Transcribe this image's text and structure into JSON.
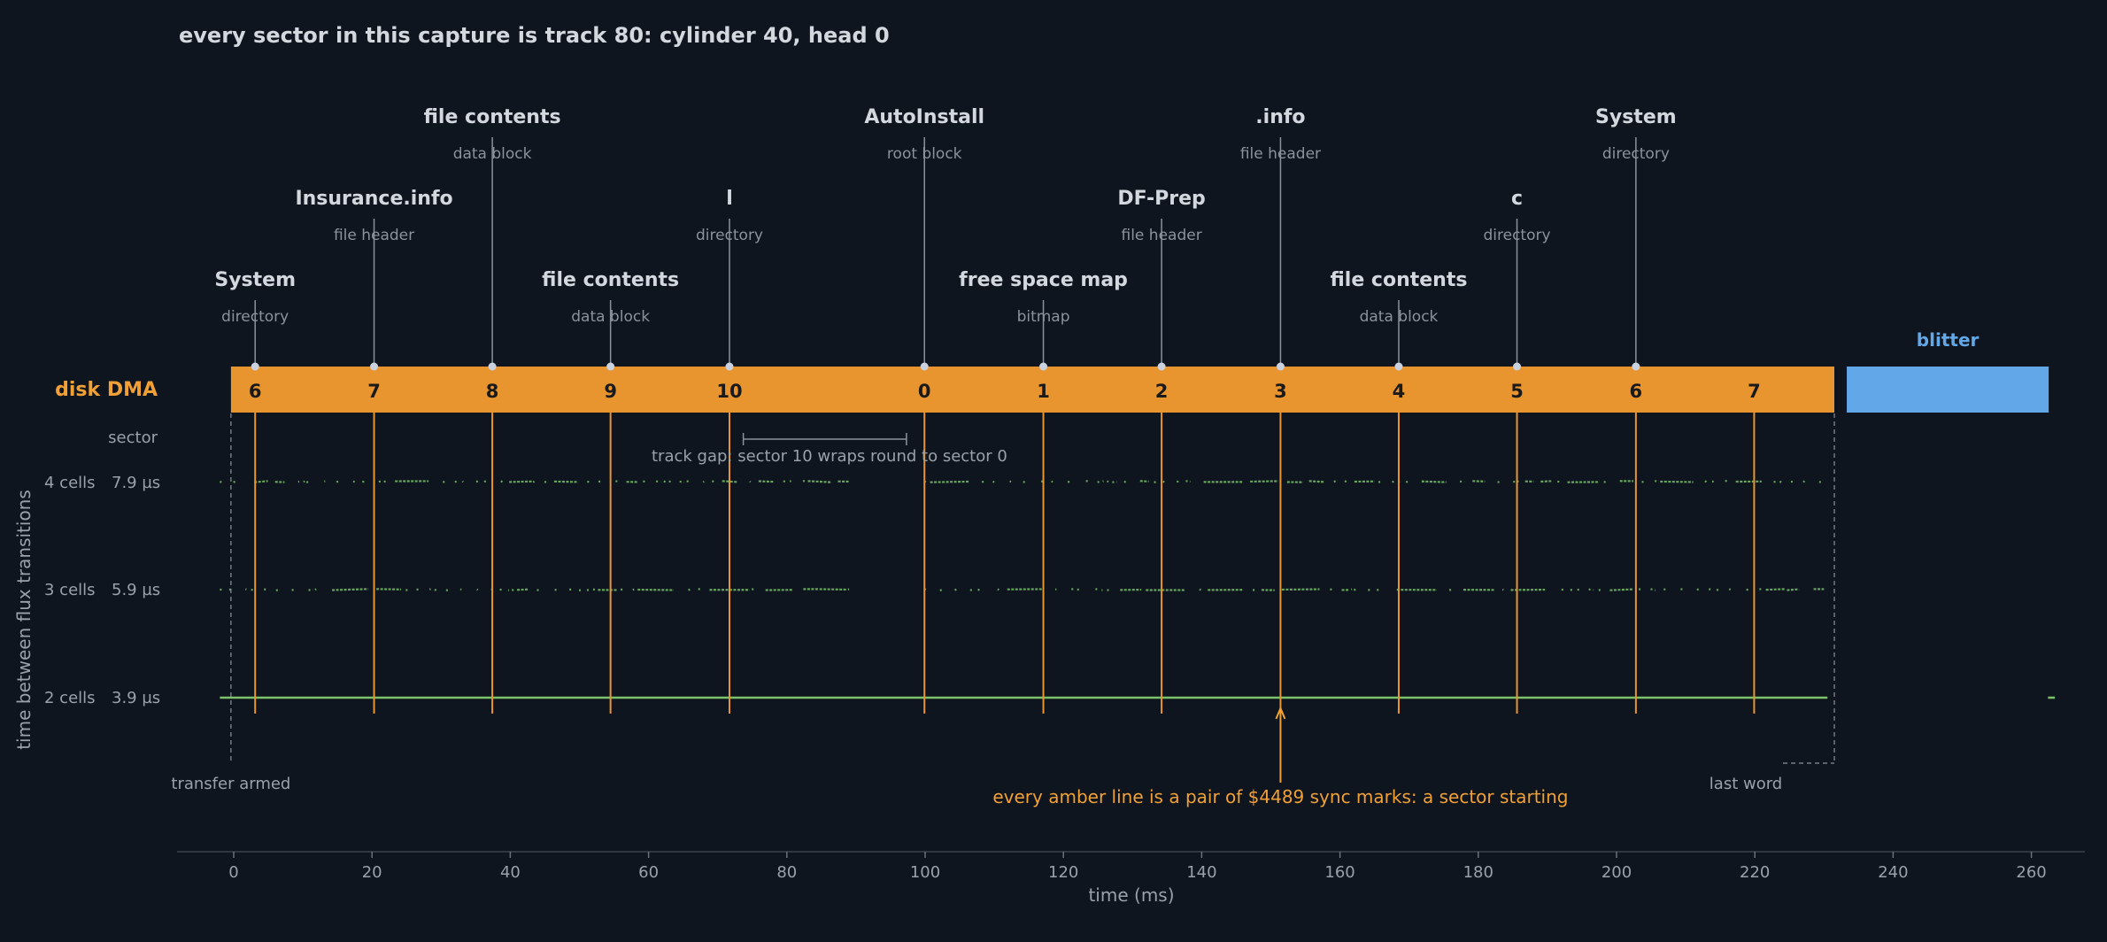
{
  "chart_data": {
    "type": "scatter",
    "title": "every sector in this capture is track 80: cylinder 40, head 0",
    "xlabel": "time (ms)",
    "ylabel": "time between flux transitions",
    "xlim": [
      -8,
      268
    ],
    "x_ticks": [
      0,
      20,
      40,
      60,
      80,
      100,
      120,
      140,
      160,
      180,
      200,
      220,
      240,
      260
    ],
    "y_levels": [
      {
        "cells": "4 cells",
        "us": "7.9 µs"
      },
      {
        "cells": "3 cells",
        "us": "5.9 µs"
      },
      {
        "cells": "2 cells",
        "us": "3.9 µs"
      }
    ],
    "sector_row_label": "sector",
    "dma": {
      "label": "disk DMA",
      "start": -0.4,
      "end": 231.5,
      "color": "#e8952f"
    },
    "blitter": {
      "label": "blitter",
      "start": 233.3,
      "end": 262.5,
      "color": "#62a8e8"
    },
    "sectors": [
      {
        "num": "6",
        "t": 3.1,
        "name": "System",
        "desc": "directory",
        "tier": 1
      },
      {
        "num": "7",
        "t": 20.3,
        "name": "Insurance.info",
        "desc": "file header",
        "tier": 2
      },
      {
        "num": "8",
        "t": 37.4,
        "name": "file contents",
        "desc": "data block",
        "tier": 3
      },
      {
        "num": "9",
        "t": 54.5,
        "name": "file contents",
        "desc": "data block",
        "tier": 1
      },
      {
        "num": "10",
        "t": 71.7,
        "name": "l",
        "desc": "directory",
        "tier": 2
      },
      {
        "num": "0",
        "t": 99.9,
        "name": "AutoInstall",
        "desc": "root block",
        "tier": 3
      },
      {
        "num": "1",
        "t": 117.1,
        "name": "free space map",
        "desc": "bitmap",
        "tier": 1
      },
      {
        "num": "2",
        "t": 134.2,
        "name": "DF-Prep",
        "desc": "file header",
        "tier": 2
      },
      {
        "num": "3",
        "t": 151.4,
        "name": ".info",
        "desc": "file header",
        "tier": 3
      },
      {
        "num": "4",
        "t": 168.5,
        "name": "file contents",
        "desc": "data block",
        "tier": 1
      },
      {
        "num": "5",
        "t": 185.6,
        "name": "c",
        "desc": "directory",
        "tier": 2
      },
      {
        "num": "6",
        "t": 202.8,
        "name": "System",
        "desc": "directory",
        "tier": 3
      },
      {
        "num": "7",
        "t": 219.9,
        "name": "",
        "desc": "",
        "tier": 0
      }
    ],
    "track_gap": {
      "start": 73.7,
      "end": 97.3,
      "text": "track gap: sector 10 wraps round to sector 0"
    },
    "annotations": {
      "transfer_armed": {
        "text": "transfer armed",
        "t": -0.4
      },
      "last_word": {
        "text": "last word",
        "t": 231.5
      },
      "sync": {
        "text": "every amber line is a pair of $4489 sync marks: a sector starting",
        "t": 151.4
      }
    },
    "flux_data_segments": [
      [
        -2,
        89
      ],
      [
        100,
        230
      ]
    ]
  }
}
